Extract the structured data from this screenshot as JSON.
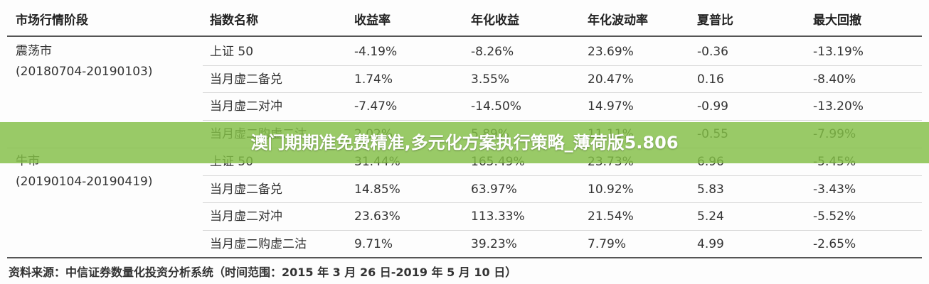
{
  "table": {
    "header": [
      "市场行情阶段",
      "指数名称",
      "收益率",
      "年化收益",
      "年化波动率",
      "夏普比",
      "最大回撤"
    ],
    "groups": [
      {
        "stage": "震荡市",
        "period": "(20180704-20190103)",
        "rows": [
          [
            "上证 50",
            "-4.19%",
            "-8.26%",
            "23.69%",
            "-0.36",
            "-13.19%"
          ],
          [
            "当月虚二备兑",
            "1.74%",
            "3.55%",
            "20.47%",
            "0.16",
            "-8.40%"
          ],
          [
            "当月虚二对冲",
            "-7.47%",
            "-14.50%",
            "14.97%",
            "-0.99",
            "-13.20%"
          ],
          [
            "当月虚二购虚二沽",
            "2.02%",
            "5.89%",
            "11.11%",
            "-0.55",
            "-7.99%"
          ]
        ]
      },
      {
        "stage": "牛市",
        "period": "(20190104-20190419)",
        "rows": [
          [
            "上证 50",
            "31.44%",
            "165.49%",
            "23.73%",
            "6.96",
            "-5.45%"
          ],
          [
            "当月虚二备兑",
            "14.85%",
            "63.97%",
            "10.92%",
            "5.83",
            "-3.43%"
          ],
          [
            "当月虚二对冲",
            "23.63%",
            "113.33%",
            "21.54%",
            "5.24",
            "-5.52%"
          ],
          [
            "当月虚二购虚二沽",
            "9.71%",
            "39.23%",
            "7.79%",
            "4.99",
            "-2.65%"
          ]
        ]
      }
    ]
  },
  "source": "资料来源：中信证券数量化投资分析系统（时间范围：2015 年 3 月 26 日-2019 年 5 月 10 日）",
  "banner": "澳门期期准免费精准,多元化方案执行策略_薄荷版5.806"
}
